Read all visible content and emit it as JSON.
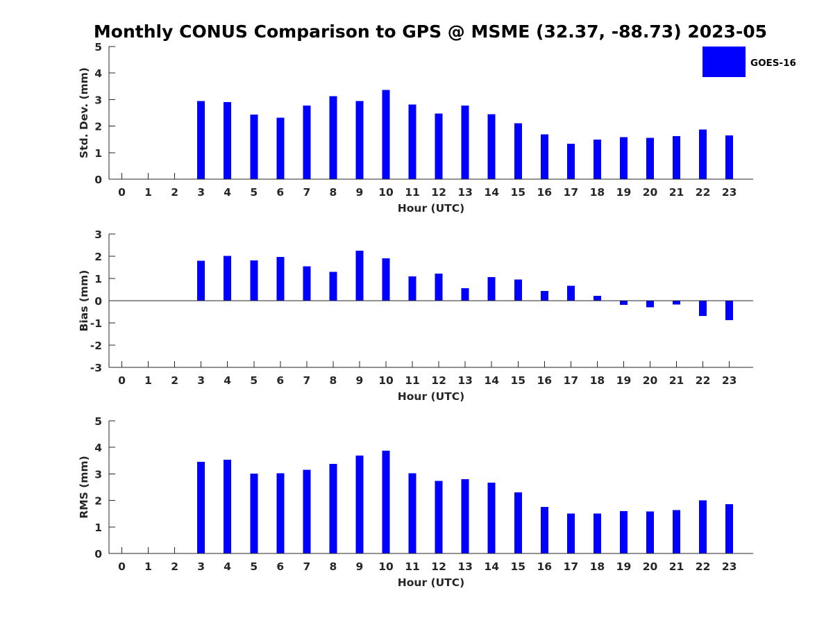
{
  "title": "Monthly CONUS Comparison to GPS @ MSME (32.37, -88.73) 2023-05",
  "legend": {
    "label": "GOES-16",
    "color": "#0000ff"
  },
  "chart_data": [
    {
      "type": "bar",
      "name": "std-dev",
      "xlabel": "Hour (UTC)",
      "ylabel": "Std. Dev. (mm)",
      "ylim": [
        0,
        5
      ],
      "yticks": [
        0,
        1,
        2,
        3,
        4,
        5
      ],
      "categories": [
        "0",
        "1",
        "2",
        "3",
        "4",
        "5",
        "6",
        "7",
        "8",
        "9",
        "10",
        "11",
        "12",
        "13",
        "14",
        "15",
        "16",
        "17",
        "18",
        "19",
        "20",
        "21",
        "22",
        "23"
      ],
      "series": [
        {
          "name": "GOES-16",
          "values": [
            null,
            null,
            null,
            2.95,
            2.9,
            2.43,
            2.32,
            2.77,
            3.13,
            2.95,
            3.37,
            2.82,
            2.48,
            2.77,
            2.45,
            2.11,
            1.69,
            1.33,
            1.49,
            1.59,
            1.56,
            1.62,
            1.87,
            1.65
          ]
        }
      ]
    },
    {
      "type": "bar",
      "name": "bias",
      "xlabel": "Hour (UTC)",
      "ylabel": "Bias (mm)",
      "ylim": [
        -3,
        3
      ],
      "yticks": [
        -3,
        -2,
        -1,
        0,
        1,
        2,
        3
      ],
      "categories": [
        "0",
        "1",
        "2",
        "3",
        "4",
        "5",
        "6",
        "7",
        "8",
        "9",
        "10",
        "11",
        "12",
        "13",
        "14",
        "15",
        "16",
        "17",
        "18",
        "19",
        "20",
        "21",
        "22",
        "23"
      ],
      "series": [
        {
          "name": "GOES-16",
          "values": [
            null,
            null,
            null,
            1.79,
            2.01,
            1.82,
            1.97,
            1.54,
            1.29,
            2.25,
            1.91,
            1.1,
            1.22,
            0.57,
            1.07,
            0.95,
            0.44,
            0.67,
            0.22,
            -0.18,
            -0.29,
            -0.17,
            -0.68,
            -0.87
          ]
        }
      ]
    },
    {
      "type": "bar",
      "name": "rms",
      "xlabel": "Hour (UTC)",
      "ylabel": "RMS (mm)",
      "ylim": [
        0,
        5
      ],
      "yticks": [
        0,
        1,
        2,
        3,
        4,
        5
      ],
      "categories": [
        "0",
        "1",
        "2",
        "3",
        "4",
        "5",
        "6",
        "7",
        "8",
        "9",
        "10",
        "11",
        "12",
        "13",
        "14",
        "15",
        "16",
        "17",
        "18",
        "19",
        "20",
        "21",
        "22",
        "23"
      ],
      "series": [
        {
          "name": "GOES-16",
          "values": [
            null,
            null,
            null,
            3.45,
            3.54,
            3.01,
            3.03,
            3.16,
            3.38,
            3.69,
            3.88,
            3.03,
            2.74,
            2.8,
            2.67,
            2.3,
            1.76,
            1.5,
            1.5,
            1.6,
            1.58,
            1.63,
            2.0,
            1.86
          ]
        }
      ]
    }
  ]
}
